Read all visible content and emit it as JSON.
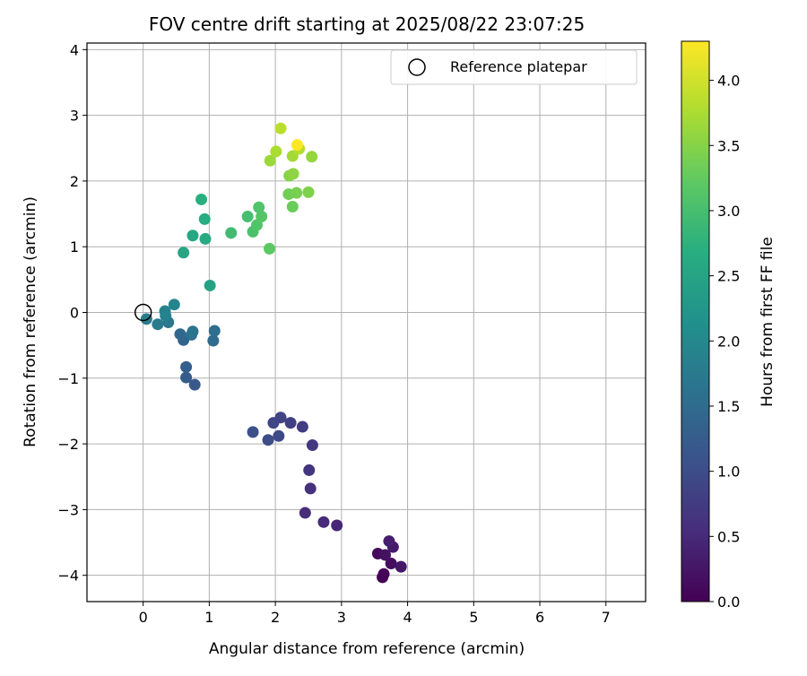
{
  "chart_data": {
    "type": "scatter",
    "title": "FOV centre drift starting at 2025/08/22 23:07:25",
    "xlabel": "Angular distance from reference (arcmin)",
    "ylabel": "Rotation from reference (arcmin)",
    "xlim": [
      -0.85,
      7.6
    ],
    "ylim": [
      -4.4,
      4.1
    ],
    "xticks": [
      0,
      1,
      2,
      3,
      4,
      5,
      6,
      7
    ],
    "yticks": [
      -4,
      -3,
      -2,
      -1,
      0,
      1,
      2,
      3,
      4
    ],
    "grid": true,
    "legend": {
      "placement": "top-right",
      "entries": [
        "Reference platepar"
      ]
    },
    "reference_point": {
      "x": 0.0,
      "y": 0.0
    },
    "colorbar": {
      "label": "Hours from first FF file",
      "range": [
        0.0,
        4.3
      ],
      "ticks": [
        "0.0",
        "0.5",
        "1.0",
        "1.5",
        "2.0",
        "2.5",
        "3.0",
        "3.5",
        "4.0"
      ],
      "colormap": "viridis"
    },
    "points": [
      {
        "x": 3.62,
        "y": -4.03,
        "c": 0.0
      },
      {
        "x": 3.64,
        "y": -3.98,
        "c": 0.05
      },
      {
        "x": 3.55,
        "y": -3.67,
        "c": 0.1
      },
      {
        "x": 3.75,
        "y": -3.82,
        "c": 0.15
      },
      {
        "x": 3.66,
        "y": -3.69,
        "c": 0.2
      },
      {
        "x": 3.9,
        "y": -3.87,
        "c": 0.25
      },
      {
        "x": 3.78,
        "y": -3.57,
        "c": 0.3
      },
      {
        "x": 3.72,
        "y": -3.48,
        "c": 0.35
      },
      {
        "x": 2.93,
        "y": -3.24,
        "c": 0.45
      },
      {
        "x": 2.73,
        "y": -3.19,
        "c": 0.5
      },
      {
        "x": 2.45,
        "y": -3.05,
        "c": 0.55
      },
      {
        "x": 2.53,
        "y": -2.68,
        "c": 0.6
      },
      {
        "x": 2.51,
        "y": -2.4,
        "c": 0.65
      },
      {
        "x": 2.56,
        "y": -2.02,
        "c": 0.7
      },
      {
        "x": 2.41,
        "y": -1.74,
        "c": 0.75
      },
      {
        "x": 2.23,
        "y": -1.68,
        "c": 0.8
      },
      {
        "x": 2.08,
        "y": -1.6,
        "c": 0.85
      },
      {
        "x": 1.97,
        "y": -1.68,
        "c": 0.9
      },
      {
        "x": 2.05,
        "y": -1.88,
        "c": 0.95
      },
      {
        "x": 1.89,
        "y": -1.94,
        "c": 1.0
      },
      {
        "x": 1.66,
        "y": -1.82,
        "c": 1.05
      },
      {
        "x": 0.78,
        "y": -1.1,
        "c": 1.2
      },
      {
        "x": 0.65,
        "y": -0.99,
        "c": 1.25
      },
      {
        "x": 0.65,
        "y": -0.83,
        "c": 1.3
      },
      {
        "x": 0.61,
        "y": -0.42,
        "c": 1.4
      },
      {
        "x": 0.56,
        "y": -0.33,
        "c": 1.45
      },
      {
        "x": 1.06,
        "y": -0.43,
        "c": 1.5
      },
      {
        "x": 1.08,
        "y": -0.28,
        "c": 1.55
      },
      {
        "x": 0.73,
        "y": -0.34,
        "c": 1.6
      },
      {
        "x": 0.75,
        "y": -0.29,
        "c": 1.65
      },
      {
        "x": 0.38,
        "y": -0.15,
        "c": 1.7
      },
      {
        "x": 0.22,
        "y": -0.18,
        "c": 1.75
      },
      {
        "x": 0.05,
        "y": -0.1,
        "c": 1.8
      },
      {
        "x": 0.34,
        "y": -0.05,
        "c": 1.85
      },
      {
        "x": 0.33,
        "y": 0.02,
        "c": 1.9
      },
      {
        "x": 0.47,
        "y": 0.12,
        "c": 1.95
      },
      {
        "x": 1.01,
        "y": 0.41,
        "c": 2.45
      },
      {
        "x": 0.61,
        "y": 0.91,
        "c": 2.5
      },
      {
        "x": 0.75,
        "y": 1.17,
        "c": 2.55
      },
      {
        "x": 0.94,
        "y": 1.12,
        "c": 2.6
      },
      {
        "x": 0.93,
        "y": 1.42,
        "c": 2.65
      },
      {
        "x": 0.88,
        "y": 1.72,
        "c": 2.7
      },
      {
        "x": 1.33,
        "y": 1.21,
        "c": 2.95
      },
      {
        "x": 1.58,
        "y": 1.46,
        "c": 3.0
      },
      {
        "x": 1.66,
        "y": 1.23,
        "c": 3.05
      },
      {
        "x": 1.72,
        "y": 1.33,
        "c": 3.1
      },
      {
        "x": 1.79,
        "y": 1.46,
        "c": 3.15
      },
      {
        "x": 1.75,
        "y": 1.6,
        "c": 3.1
      },
      {
        "x": 1.91,
        "y": 0.97,
        "c": 3.2
      },
      {
        "x": 2.26,
        "y": 1.61,
        "c": 3.3
      },
      {
        "x": 2.2,
        "y": 1.8,
        "c": 3.35
      },
      {
        "x": 2.32,
        "y": 1.82,
        "c": 3.4
      },
      {
        "x": 2.5,
        "y": 1.83,
        "c": 3.45
      },
      {
        "x": 2.21,
        "y": 2.08,
        "c": 3.5
      },
      {
        "x": 2.27,
        "y": 2.11,
        "c": 3.55
      },
      {
        "x": 2.55,
        "y": 2.37,
        "c": 3.6
      },
      {
        "x": 1.92,
        "y": 2.31,
        "c": 3.65
      },
      {
        "x": 2.26,
        "y": 2.38,
        "c": 3.7
      },
      {
        "x": 2.01,
        "y": 2.45,
        "c": 3.75
      },
      {
        "x": 2.36,
        "y": 2.49,
        "c": 3.8
      },
      {
        "x": 2.08,
        "y": 2.8,
        "c": 3.85
      },
      {
        "x": 2.33,
        "y": 2.55,
        "c": 4.3
      }
    ]
  }
}
